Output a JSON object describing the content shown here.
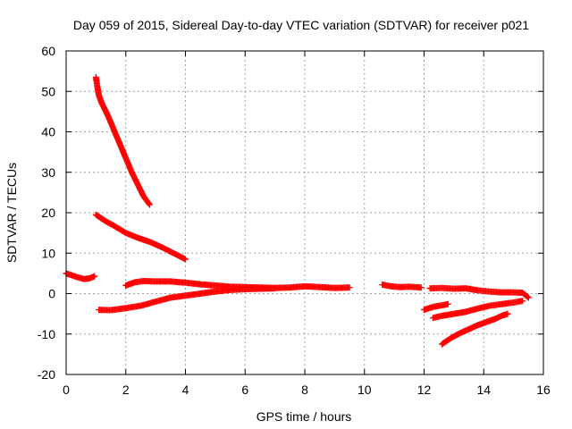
{
  "chart_data": {
    "type": "scatter",
    "title": "Day 059 of 2015, Sidereal Day-to-day VTEC variation (SDTVAR) for receiver p021",
    "xlabel": "GPS time / hours",
    "ylabel": "SDTVAR / TECUs",
    "xlim": [
      0,
      16
    ],
    "ylim": [
      -20,
      60
    ],
    "x_ticks": [
      "0",
      "2",
      "4",
      "6",
      "8",
      "10",
      "12",
      "14",
      "16"
    ],
    "y_ticks": [
      "-20",
      "-10",
      "0",
      "10",
      "20",
      "30",
      "40",
      "50",
      "60"
    ],
    "grid": true,
    "marker": "+",
    "color": "#ff0000",
    "series": [
      {
        "points": [
          [
            0.0,
            5.0
          ],
          [
            0.2,
            4.5
          ],
          [
            0.4,
            4.0
          ],
          [
            0.6,
            3.6
          ],
          [
            0.8,
            3.8
          ],
          [
            0.95,
            4.3
          ]
        ]
      },
      {
        "points": [
          [
            1.0,
            53.5
          ],
          [
            1.05,
            51
          ],
          [
            1.1,
            49
          ],
          [
            1.2,
            47
          ],
          [
            1.4,
            44
          ],
          [
            1.6,
            40.5
          ],
          [
            1.8,
            37
          ],
          [
            2.0,
            33.5
          ],
          [
            2.2,
            30
          ],
          [
            2.4,
            27
          ],
          [
            2.6,
            24
          ],
          [
            2.8,
            22
          ]
        ]
      },
      {
        "points": [
          [
            1.0,
            19.5
          ],
          [
            1.3,
            18
          ],
          [
            1.6,
            16.8
          ],
          [
            2.0,
            15
          ],
          [
            2.4,
            13.8
          ],
          [
            2.8,
            12.8
          ],
          [
            3.2,
            11.5
          ],
          [
            3.6,
            10
          ],
          [
            4.0,
            8.5
          ]
        ]
      },
      {
        "points": [
          [
            2.0,
            2.0
          ],
          [
            2.3,
            2.8
          ],
          [
            2.6,
            3.1
          ],
          [
            3.0,
            3.0
          ],
          [
            3.5,
            3.0
          ],
          [
            4.0,
            2.7
          ],
          [
            4.5,
            2.3
          ],
          [
            5.0,
            2.0
          ],
          [
            5.5,
            1.7
          ],
          [
            6.0,
            1.6
          ],
          [
            6.5,
            1.5
          ],
          [
            7.0,
            1.4
          ],
          [
            7.5,
            1.5
          ],
          [
            8.0,
            1.8
          ],
          [
            8.5,
            1.6
          ],
          [
            9.0,
            1.4
          ],
          [
            9.5,
            1.5
          ]
        ]
      },
      {
        "points": [
          [
            1.1,
            -4
          ],
          [
            1.5,
            -4.1
          ],
          [
            2.0,
            -3.6
          ],
          [
            2.5,
            -3.0
          ],
          [
            3.0,
            -2.0
          ],
          [
            3.5,
            -1.0
          ],
          [
            4.0,
            -0.5
          ],
          [
            4.5,
            0
          ],
          [
            5.0,
            0.5
          ],
          [
            5.5,
            0.9
          ],
          [
            6.0,
            1.1
          ],
          [
            6.5,
            1.2
          ],
          [
            7.0,
            1.3
          ]
        ]
      },
      {
        "points": [
          [
            10.6,
            2.2
          ],
          [
            10.9,
            1.8
          ],
          [
            11.2,
            1.6
          ],
          [
            11.5,
            1.7
          ],
          [
            11.9,
            1.5
          ]
        ]
      },
      {
        "points": [
          [
            12.2,
            1.3
          ],
          [
            12.6,
            1.4
          ],
          [
            13.0,
            1.2
          ],
          [
            13.4,
            1.3
          ],
          [
            13.8,
            0.8
          ],
          [
            14.2,
            0.5
          ],
          [
            14.6,
            0.3
          ],
          [
            15.0,
            0.3
          ],
          [
            15.3,
            0.2
          ],
          [
            15.5,
            -1.0
          ]
        ]
      },
      {
        "points": [
          [
            12.0,
            -4.0
          ],
          [
            12.3,
            -3.3
          ],
          [
            12.6,
            -2.9
          ],
          [
            12.8,
            -2.6
          ]
        ]
      },
      {
        "points": [
          [
            12.3,
            -6.0
          ],
          [
            12.6,
            -5.5
          ],
          [
            13.0,
            -5.0
          ],
          [
            13.4,
            -4.5
          ],
          [
            13.8,
            -3.7
          ],
          [
            14.2,
            -3.0
          ],
          [
            14.6,
            -2.6
          ],
          [
            15.0,
            -2.2
          ],
          [
            15.3,
            -1.8
          ]
        ]
      },
      {
        "points": [
          [
            12.6,
            -12.5
          ],
          [
            12.9,
            -11.0
          ],
          [
            13.2,
            -9.8
          ],
          [
            13.5,
            -8.8
          ],
          [
            13.8,
            -7.8
          ],
          [
            14.1,
            -7.0
          ],
          [
            14.4,
            -6.2
          ],
          [
            14.6,
            -5.5
          ],
          [
            14.8,
            -5.0
          ]
        ]
      }
    ]
  }
}
